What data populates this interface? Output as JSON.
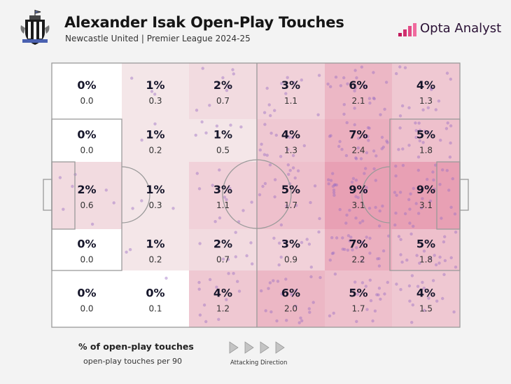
{
  "header": {
    "title": "Alexander Isak Open-Play Touches",
    "subtitle": "Newcastle United | Premier League 2024-25",
    "brand": "Opta Analyst"
  },
  "legend": {
    "title": "% of open-play touches",
    "subtitle": "open-play touches per 90",
    "direction_label": "Attacking Direction"
  },
  "colors": {
    "background": "#f3f3f3",
    "heat_low": "#f7efef",
    "heat_high": "#e8a7b8",
    "dot": "#9b6fc4",
    "brand": "#c2185b"
  },
  "chart_data": {
    "type": "heatmap",
    "title": "Alexander Isak Open-Play Touches",
    "columns": 6,
    "rows": 5,
    "attacking_direction": "left-to-right",
    "zones": [
      [
        {
          "pct": "0%",
          "p90": "0.0"
        },
        {
          "pct": "1%",
          "p90": "0.3"
        },
        {
          "pct": "2%",
          "p90": "0.7"
        },
        {
          "pct": "3%",
          "p90": "1.1"
        },
        {
          "pct": "6%",
          "p90": "2.1"
        },
        {
          "pct": "4%",
          "p90": "1.3"
        }
      ],
      [
        {
          "pct": "0%",
          "p90": "0.0"
        },
        {
          "pct": "1%",
          "p90": "0.2"
        },
        {
          "pct": "1%",
          "p90": "0.5"
        },
        {
          "pct": "4%",
          "p90": "1.3"
        },
        {
          "pct": "7%",
          "p90": "2.4"
        },
        {
          "pct": "5%",
          "p90": "1.8"
        }
      ],
      [
        {
          "pct": "2%",
          "p90": "0.6"
        },
        {
          "pct": "1%",
          "p90": "0.3"
        },
        {
          "pct": "3%",
          "p90": "1.1"
        },
        {
          "pct": "5%",
          "p90": "1.7"
        },
        {
          "pct": "9%",
          "p90": "3.1"
        },
        {
          "pct": "9%",
          "p90": "3.1"
        }
      ],
      [
        {
          "pct": "0%",
          "p90": "0.0"
        },
        {
          "pct": "1%",
          "p90": "0.2"
        },
        {
          "pct": "2%",
          "p90": "0.7"
        },
        {
          "pct": "3%",
          "p90": "0.9"
        },
        {
          "pct": "7%",
          "p90": "2.2"
        },
        {
          "pct": "5%",
          "p90": "1.8"
        }
      ],
      [
        {
          "pct": "0%",
          "p90": "0.0"
        },
        {
          "pct": "0%",
          "p90": "0.1"
        },
        {
          "pct": "4%",
          "p90": "1.2"
        },
        {
          "pct": "6%",
          "p90": "2.0"
        },
        {
          "pct": "5%",
          "p90": "1.7"
        },
        {
          "pct": "4%",
          "p90": "1.5"
        }
      ]
    ]
  }
}
